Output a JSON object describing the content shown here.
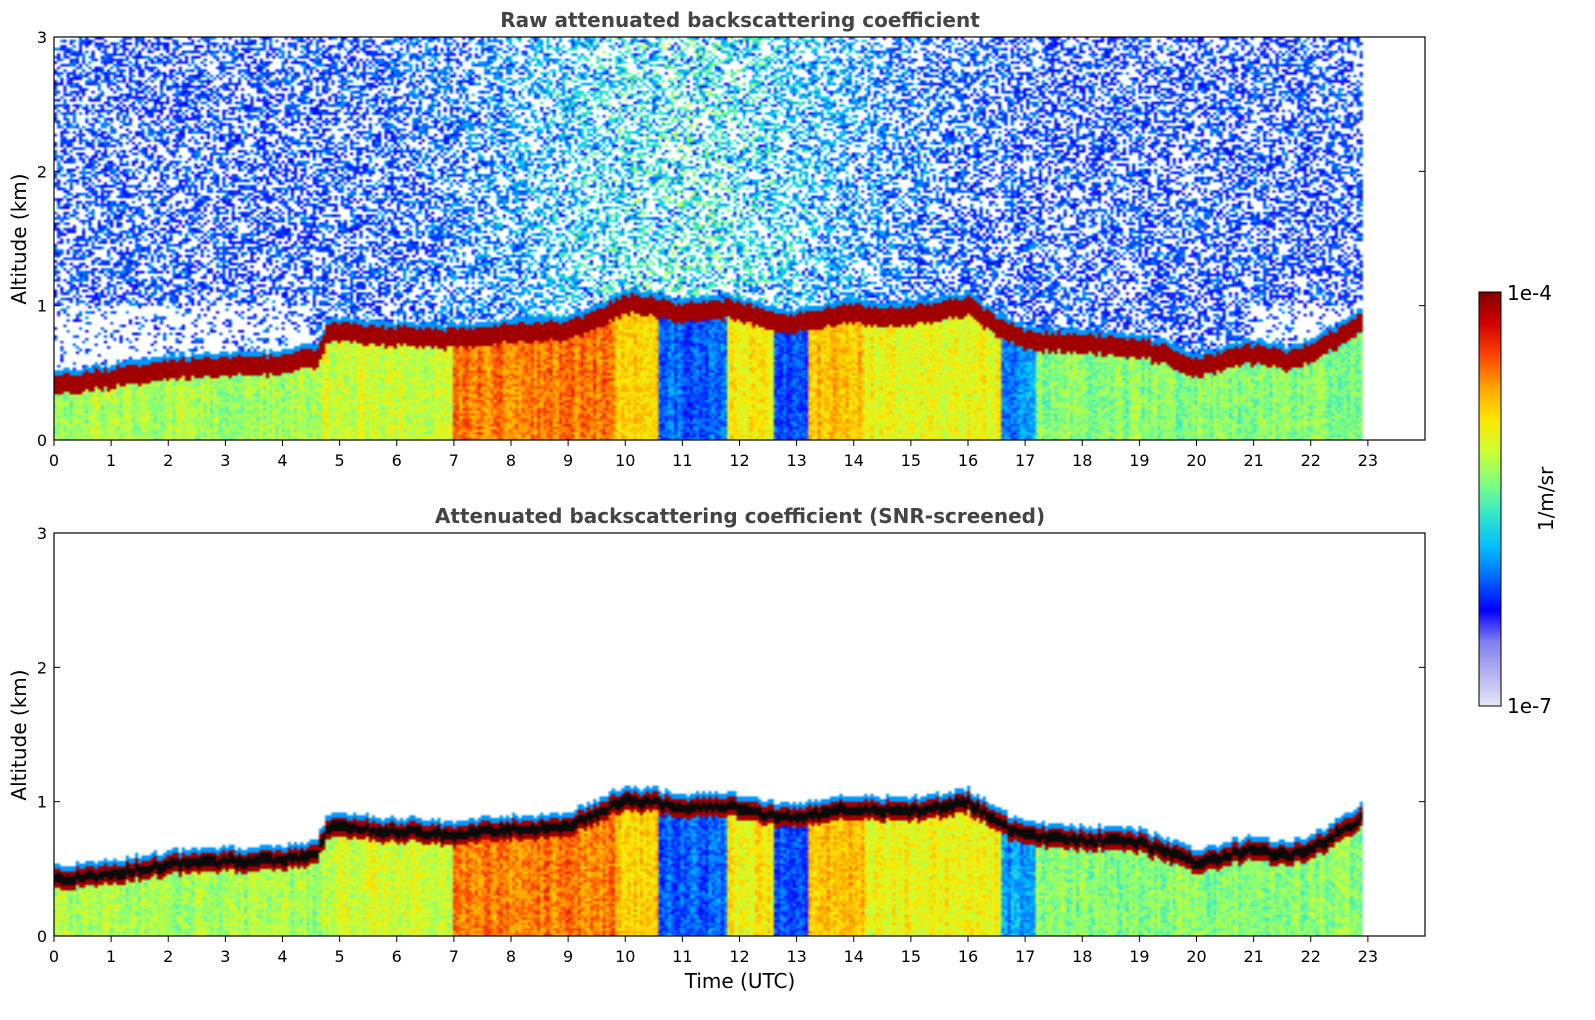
{
  "chart_data": [
    {
      "type": "heatmap",
      "title": "Raw attenuated backscattering coefficient",
      "xlabel": "",
      "ylabel": "Altitude (km)",
      "xlim": [
        0,
        24
      ],
      "ylim": [
        0,
        3
      ],
      "xticks": [
        "0",
        "1",
        "2",
        "3",
        "4",
        "5",
        "6",
        "7",
        "8",
        "9",
        "10",
        "11",
        "12",
        "13",
        "14",
        "15",
        "16",
        "17",
        "18",
        "19",
        "20",
        "21",
        "22",
        "23"
      ],
      "yticks": [
        "0",
        "1",
        "2",
        "3"
      ],
      "data_end_time": 22.9,
      "screened": false,
      "boundary_layer_top_km": {
        "time": [
          0,
          1,
          2,
          3,
          4,
          4.6,
          4.8,
          6,
          7,
          8,
          9,
          10,
          10.5,
          11,
          11.8,
          12.5,
          13,
          13.8,
          15,
          16,
          16.5,
          17,
          18,
          19,
          20,
          21,
          21.6,
          22,
          22.9
        ],
        "value": [
          0.42,
          0.47,
          0.53,
          0.56,
          0.57,
          0.62,
          0.82,
          0.78,
          0.76,
          0.8,
          0.82,
          1.02,
          1.0,
          0.95,
          0.98,
          0.9,
          0.88,
          0.95,
          0.93,
          1.0,
          0.85,
          0.75,
          0.72,
          0.7,
          0.55,
          0.65,
          0.6,
          0.65,
          0.88
        ]
      }
    },
    {
      "type": "heatmap",
      "title": "Attenuated backscattering coefficient (SNR-screened)",
      "xlabel": "Time (UTC)",
      "ylabel": "Altitude (km)",
      "xlim": [
        0,
        24
      ],
      "ylim": [
        0,
        3
      ],
      "xticks": [
        "0",
        "1",
        "2",
        "3",
        "4",
        "5",
        "6",
        "7",
        "8",
        "9",
        "10",
        "11",
        "12",
        "13",
        "14",
        "15",
        "16",
        "17",
        "18",
        "19",
        "20",
        "21",
        "22",
        "23"
      ],
      "yticks": [
        "0",
        "1",
        "2",
        "3"
      ],
      "data_end_time": 22.9,
      "screened": true
    }
  ],
  "colorbar": {
    "label": "1/m/sr",
    "max_label": "1e-4",
    "min_label": "1e-7",
    "scale": "log",
    "range": [
      1e-07,
      0.0001
    ],
    "colormap": [
      "#e6e6f5",
      "#b3b3f0",
      "#8080f0",
      "#0000ff",
      "#0066ff",
      "#00bfff",
      "#33e6cc",
      "#80ff80",
      "#ccff33",
      "#ffe600",
      "#ffa500",
      "#ff4500",
      "#d40000",
      "#800000"
    ]
  }
}
